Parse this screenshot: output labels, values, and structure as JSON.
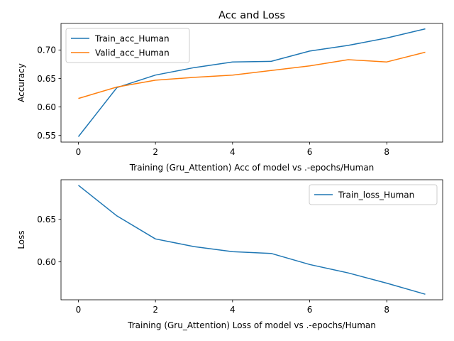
{
  "figure_title": "Acc and Loss",
  "chart_data": [
    {
      "type": "line",
      "xlabel": "Training (Gru_Attention) Acc of model vs .-epochs/Human",
      "ylabel": "Accuracy",
      "xlim": [
        -0.45,
        9.45
      ],
      "ylim": [
        0.5385,
        0.7465
      ],
      "xticks": [
        "0",
        "2",
        "4",
        "6",
        "8"
      ],
      "yticks": [
        "0.55",
        "0.60",
        "0.65",
        "0.70"
      ],
      "legend": "upper-left",
      "x": [
        0,
        1,
        2,
        3,
        4,
        5,
        6,
        7,
        8,
        9
      ],
      "series": [
        {
          "name": "Train_acc_Human",
          "color": "#1f77b4",
          "values": [
            0.548,
            0.634,
            0.656,
            0.669,
            0.679,
            0.68,
            0.698,
            0.708,
            0.721,
            0.737
          ]
        },
        {
          "name": "Valid_acc_Human",
          "color": "#ff7f0e",
          "values": [
            0.615,
            0.635,
            0.647,
            0.652,
            0.656,
            0.664,
            0.672,
            0.683,
            0.679,
            0.696
          ]
        }
      ]
    },
    {
      "type": "line",
      "xlabel": "Training (Gru_Attention) Loss of model vs .-epochs/Human",
      "ylabel": "Loss",
      "xlim": [
        -0.45,
        9.45
      ],
      "ylim": [
        0.5555,
        0.6965
      ],
      "xticks": [
        "0",
        "2",
        "4",
        "6",
        "8"
      ],
      "yticks": [
        "0.60",
        "0.65"
      ],
      "legend": "upper-right",
      "x": [
        0,
        1,
        2,
        3,
        4,
        5,
        6,
        7,
        8,
        9
      ],
      "series": [
        {
          "name": "Train_loss_Human",
          "color": "#1f77b4",
          "values": [
            0.69,
            0.654,
            0.627,
            0.618,
            0.612,
            0.61,
            0.597,
            0.587,
            0.575,
            0.562
          ]
        }
      ]
    }
  ]
}
